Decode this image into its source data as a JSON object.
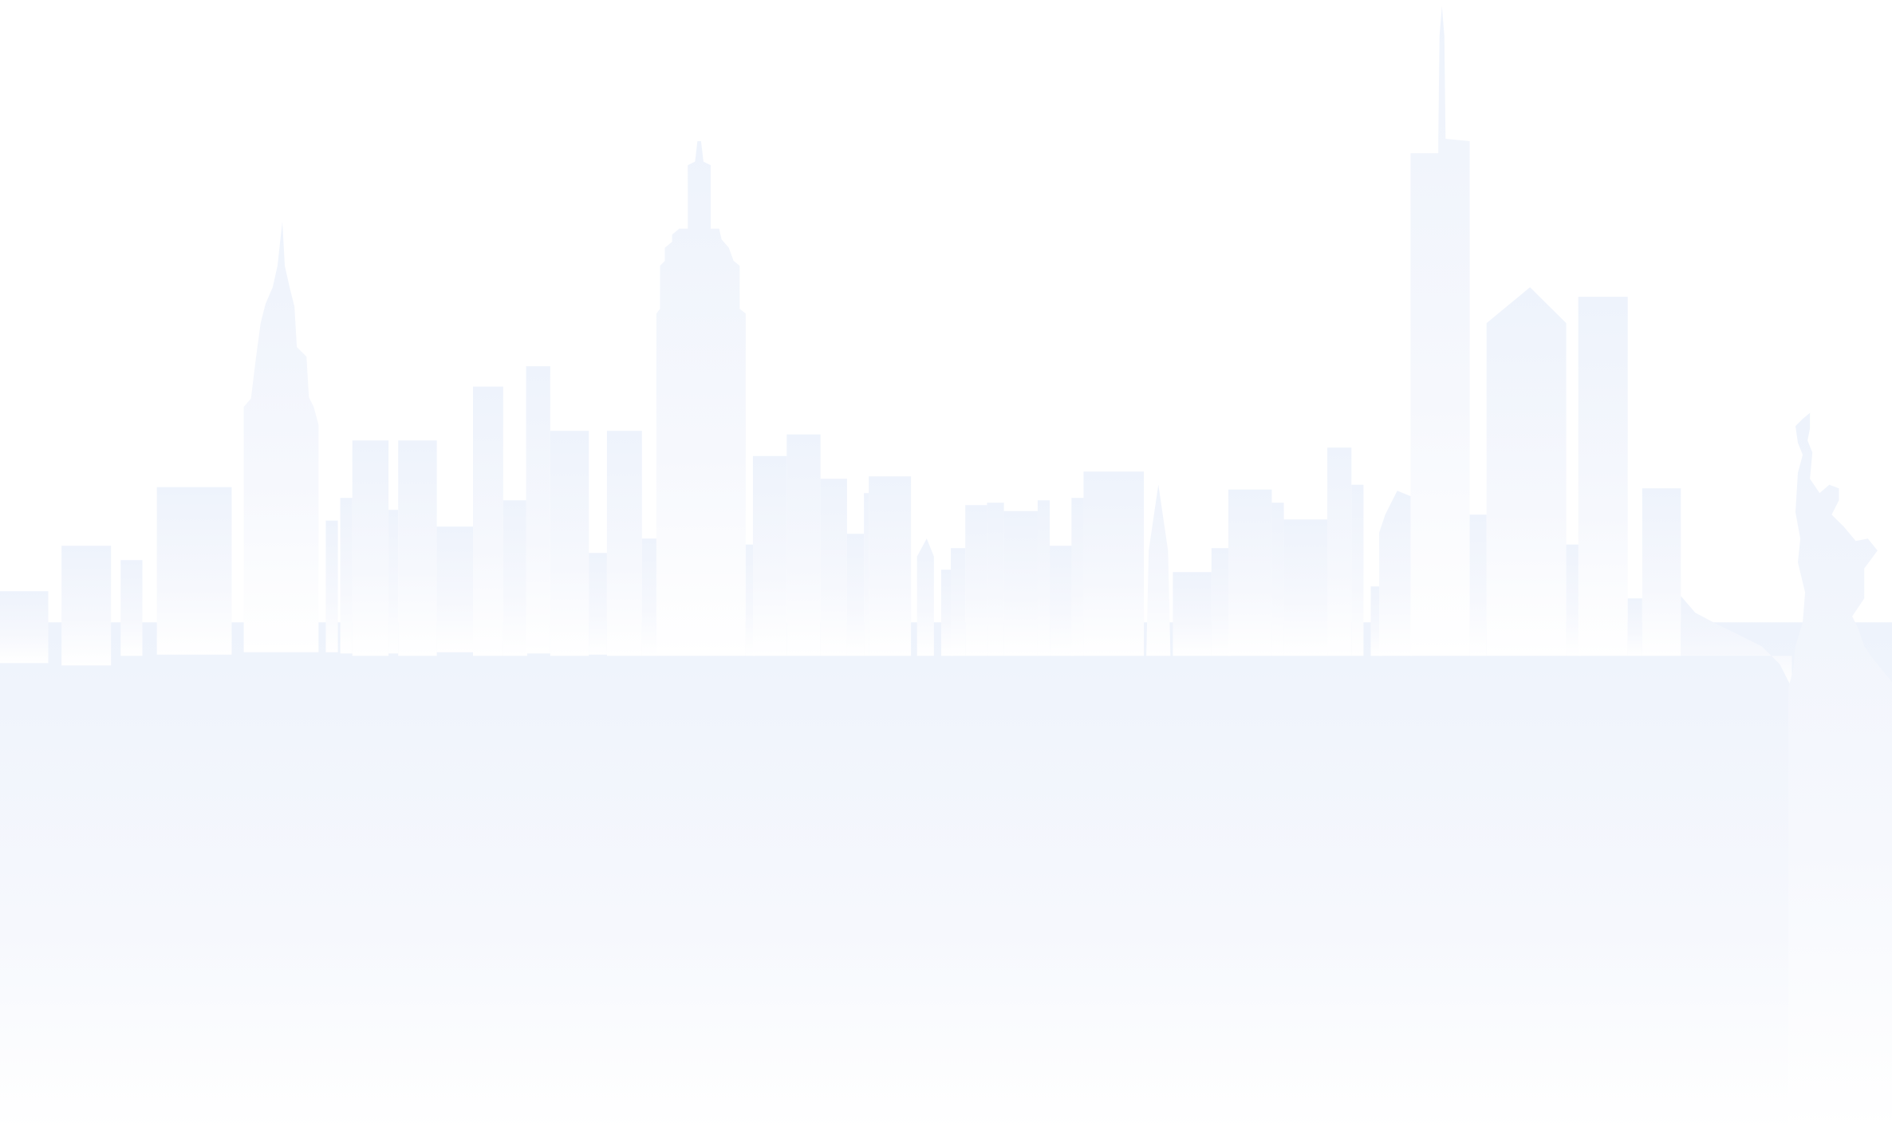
{
  "illustration": {
    "icon": "city-skyline-icon",
    "colors": {
      "top": "#eef3fc",
      "mid": "#f6f8fd",
      "bottom": "#ffffff"
    }
  }
}
